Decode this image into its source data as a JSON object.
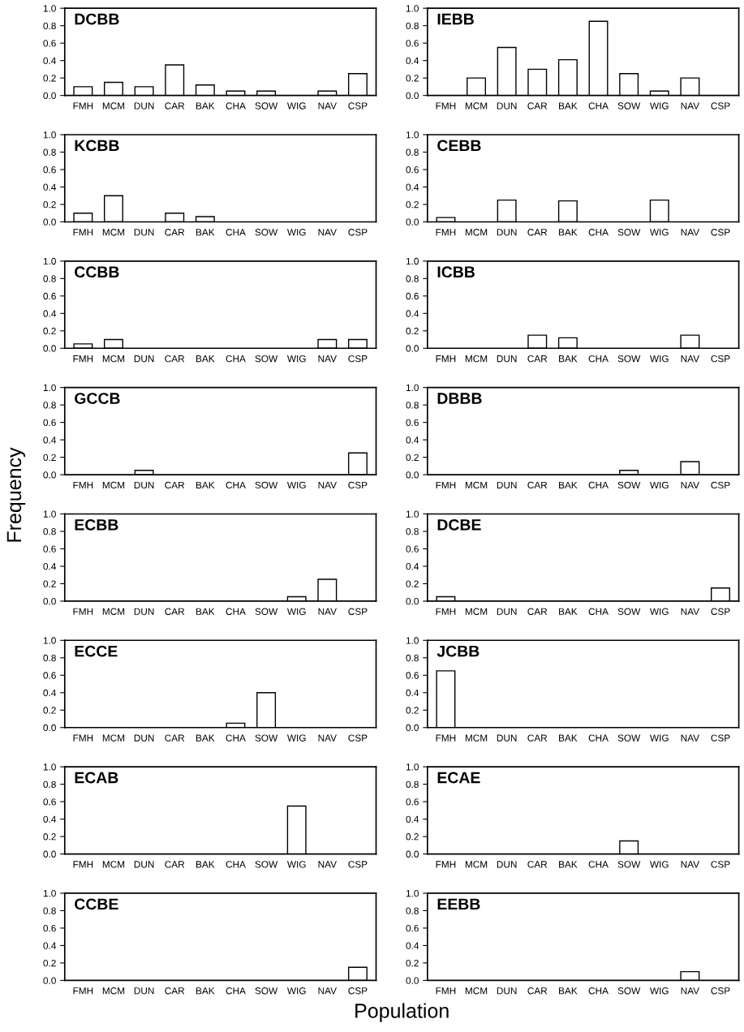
{
  "chart_data": [
    {
      "type": "bar",
      "title": "DCBB",
      "categories": [
        "FMH",
        "MCM",
        "DUN",
        "CAR",
        "BAK",
        "CHA",
        "SOW",
        "WIG",
        "NAV",
        "CSP"
      ],
      "values": [
        0.1,
        0.15,
        0.1,
        0.35,
        0.12,
        0.05,
        0.05,
        0,
        0.05,
        0.25
      ],
      "color": "#ffffff",
      "ylim": [
        0,
        1
      ],
      "yticks": [
        {
          "value": 0,
          "label": "0.0"
        },
        {
          "value": 0.2,
          "label": "0.2"
        },
        {
          "value": 0.4,
          "label": "0.4"
        },
        {
          "value": 0.6,
          "label": "0.6"
        },
        {
          "value": 0.8,
          "label": "0.8"
        },
        {
          "value": 1,
          "label": "1.0"
        }
      ]
    },
    {
      "type": "bar",
      "title": "IEBB",
      "categories": [
        "FMH",
        "MCM",
        "DUN",
        "CAR",
        "BAK",
        "CHA",
        "SOW",
        "WIG",
        "NAV",
        "CSP"
      ],
      "values": [
        0,
        0.2,
        0.55,
        0.3,
        0.41,
        0.85,
        0.25,
        0.05,
        0.2,
        0
      ],
      "color": "#ffffff",
      "ylim": [
        0,
        1
      ],
      "yticks": [
        {
          "value": 0,
          "label": "0.0"
        },
        {
          "value": 0.2,
          "label": "0.2"
        },
        {
          "value": 0.4,
          "label": "0.4"
        },
        {
          "value": 0.6,
          "label": "0.6"
        },
        {
          "value": 0.8,
          "label": "0.8"
        },
        {
          "value": 1,
          "label": "1.0"
        }
      ]
    },
    {
      "type": "bar",
      "title": "KCBB",
      "categories": [
        "FMH",
        "MCM",
        "DUN",
        "CAR",
        "BAK",
        "CHA",
        "SOW",
        "WIG",
        "NAV",
        "CSP"
      ],
      "values": [
        0.1,
        0.3,
        0,
        0.1,
        0.06,
        0,
        0,
        0,
        0,
        0
      ],
      "color": "#ffffff",
      "ylim": [
        0,
        1
      ],
      "yticks": [
        {
          "value": 0,
          "label": "0.0"
        },
        {
          "value": 0.2,
          "label": "0.2"
        },
        {
          "value": 0.4,
          "label": "0.4"
        },
        {
          "value": 0.6,
          "label": "0.6"
        },
        {
          "value": 0.8,
          "label": "0.8"
        },
        {
          "value": 1,
          "label": "1.0"
        }
      ]
    },
    {
      "type": "bar",
      "title": "CEBB",
      "categories": [
        "FMH",
        "MCM",
        "DUN",
        "CAR",
        "BAK",
        "CHA",
        "SOW",
        "WIG",
        "NAV",
        "CSP"
      ],
      "values": [
        0.05,
        0,
        0.25,
        0,
        0.24,
        0,
        0,
        0.25,
        0,
        0
      ],
      "color": "#ffffff",
      "ylim": [
        0,
        1
      ],
      "yticks": [
        {
          "value": 0,
          "label": "0.0"
        },
        {
          "value": 0.2,
          "label": "0.2"
        },
        {
          "value": 0.4,
          "label": "0.4"
        },
        {
          "value": 0.6,
          "label": "0.6"
        },
        {
          "value": 0.8,
          "label": "0.8"
        },
        {
          "value": 1,
          "label": "1.0"
        }
      ]
    },
    {
      "type": "bar",
      "title": "CCBB",
      "categories": [
        "FMH",
        "MCM",
        "DUN",
        "CAR",
        "BAK",
        "CHA",
        "SOW",
        "WIG",
        "NAV",
        "CSP"
      ],
      "values": [
        0.05,
        0.1,
        0,
        0,
        0,
        0,
        0,
        0,
        0.1,
        0.1
      ],
      "color": "#ffffff",
      "ylim": [
        0,
        1
      ],
      "yticks": [
        {
          "value": 0,
          "label": "0.0"
        },
        {
          "value": 0.2,
          "label": "0.2"
        },
        {
          "value": 0.4,
          "label": "0.4"
        },
        {
          "value": 0.6,
          "label": "0.6"
        },
        {
          "value": 0.8,
          "label": "0.8"
        },
        {
          "value": 1,
          "label": "1.0"
        }
      ]
    },
    {
      "type": "bar",
      "title": "ICBB",
      "categories": [
        "FMH",
        "MCM",
        "DUN",
        "CAR",
        "BAK",
        "CHA",
        "SOW",
        "WIG",
        "NAV",
        "CSP"
      ],
      "values": [
        0,
        0,
        0,
        0.15,
        0.12,
        0,
        0,
        0,
        0.15,
        0
      ],
      "color": "#ffffff",
      "ylim": [
        0,
        1
      ],
      "yticks": [
        {
          "value": 0,
          "label": "0.0"
        },
        {
          "value": 0.2,
          "label": "0.2"
        },
        {
          "value": 0.4,
          "label": "0.4"
        },
        {
          "value": 0.6,
          "label": "0.6"
        },
        {
          "value": 0.8,
          "label": "0.8"
        },
        {
          "value": 1,
          "label": "1.0"
        }
      ]
    },
    {
      "type": "bar",
      "title": "GCCB",
      "ylabel": "Frequency",
      "categories": [
        "FMH",
        "MCM",
        "DUN",
        "CAR",
        "BAK",
        "CHA",
        "SOW",
        "WIG",
        "NAV",
        "CSP"
      ],
      "values": [
        0,
        0,
        0.05,
        0,
        0,
        0,
        0,
        0,
        0,
        0.25
      ],
      "color": "#ffffff",
      "ylim": [
        0,
        1
      ],
      "yticks": [
        {
          "value": 0,
          "label": "0.0"
        },
        {
          "value": 0.2,
          "label": "0.2"
        },
        {
          "value": 0.4,
          "label": "0.4"
        },
        {
          "value": 0.6,
          "label": "0.6"
        },
        {
          "value": 0.8,
          "label": "0.8"
        },
        {
          "value": 1,
          "label": "1.0"
        }
      ]
    },
    {
      "type": "bar",
      "title": "DBBB",
      "categories": [
        "FMH",
        "MCM",
        "DUN",
        "CAR",
        "BAK",
        "CHA",
        "SOW",
        "WIG",
        "NAV",
        "CSP"
      ],
      "values": [
        0,
        0,
        0,
        0,
        0,
        0,
        0.05,
        0,
        0.15,
        0
      ],
      "color": "#ffffff",
      "ylim": [
        0,
        1
      ],
      "yticks": [
        {
          "value": 0,
          "label": "0.0"
        },
        {
          "value": 0.2,
          "label": "0.2"
        },
        {
          "value": 0.4,
          "label": "0.4"
        },
        {
          "value": 0.6,
          "label": "0.6"
        },
        {
          "value": 0.8,
          "label": "0.8"
        },
        {
          "value": 1,
          "label": "1.0"
        }
      ]
    },
    {
      "type": "bar",
      "title": "ECBB",
      "categories": [
        "FMH",
        "MCM",
        "DUN",
        "CAR",
        "BAK",
        "CHA",
        "SOW",
        "WIG",
        "NAV",
        "CSP"
      ],
      "values": [
        0,
        0,
        0,
        0,
        0,
        0,
        0,
        0.05,
        0.25,
        0
      ],
      "color": "#ffffff",
      "ylim": [
        0,
        1
      ],
      "yticks": [
        {
          "value": 0,
          "label": "0.0"
        },
        {
          "value": 0.2,
          "label": "0.2"
        },
        {
          "value": 0.4,
          "label": "0.4"
        },
        {
          "value": 0.6,
          "label": "0.6"
        },
        {
          "value": 0.8,
          "label": "0.8"
        },
        {
          "value": 1,
          "label": "1.0"
        }
      ]
    },
    {
      "type": "bar",
      "title": "DCBE",
      "categories": [
        "FMH",
        "MCM",
        "DUN",
        "CAR",
        "BAK",
        "CHA",
        "SOW",
        "WIG",
        "NAV",
        "CSP"
      ],
      "values": [
        0.05,
        0,
        0,
        0,
        0,
        0,
        0,
        0,
        0,
        0.15
      ],
      "color": "#ffffff",
      "ylim": [
        0,
        1
      ],
      "yticks": [
        {
          "value": 0,
          "label": "0.0"
        },
        {
          "value": 0.2,
          "label": "0.2"
        },
        {
          "value": 0.4,
          "label": "0.4"
        },
        {
          "value": 0.6,
          "label": "0.6"
        },
        {
          "value": 0.8,
          "label": "0.8"
        },
        {
          "value": 1,
          "label": "1.0"
        }
      ]
    },
    {
      "type": "bar",
      "title": "ECCE",
      "categories": [
        "FMH",
        "MCM",
        "DUN",
        "CAR",
        "BAK",
        "CHA",
        "SOW",
        "WIG",
        "NAV",
        "CSP"
      ],
      "values": [
        0,
        0,
        0,
        0,
        0,
        0.05,
        0.4,
        0,
        0,
        0
      ],
      "color": "#ffffff",
      "ylim": [
        0,
        1
      ],
      "yticks": [
        {
          "value": 0,
          "label": "0.0"
        },
        {
          "value": 0.2,
          "label": "0.2"
        },
        {
          "value": 0.4,
          "label": "0.4"
        },
        {
          "value": 0.6,
          "label": "0.6"
        },
        {
          "value": 0.8,
          "label": "0.8"
        },
        {
          "value": 1,
          "label": "1.0"
        }
      ]
    },
    {
      "type": "bar",
      "title": "JCBB",
      "categories": [
        "FMH",
        "MCM",
        "DUN",
        "CAR",
        "BAK",
        "CHA",
        "SOW",
        "WIG",
        "NAV",
        "CSP"
      ],
      "values": [
        0.65,
        0,
        0,
        0,
        0,
        0,
        0,
        0,
        0,
        0
      ],
      "color": "#ffffff",
      "ylim": [
        0,
        1
      ],
      "yticks": [
        {
          "value": 0,
          "label": "0.0"
        },
        {
          "value": 0.2,
          "label": "0.2"
        },
        {
          "value": 0.4,
          "label": "0.4"
        },
        {
          "value": 0.6,
          "label": "0.6"
        },
        {
          "value": 0.8,
          "label": "0.8"
        },
        {
          "value": 1,
          "label": "1.0"
        }
      ]
    },
    {
      "type": "bar",
      "title": "ECAB",
      "categories": [
        "FMH",
        "MCM",
        "DUN",
        "CAR",
        "BAK",
        "CHA",
        "SOW",
        "WIG",
        "NAV",
        "CSP"
      ],
      "values": [
        0,
        0,
        0,
        0,
        0,
        0,
        0,
        0.55,
        0,
        0
      ],
      "color": "#ffffff",
      "ylim": [
        0,
        1
      ],
      "yticks": [
        {
          "value": 0,
          "label": "0.0"
        },
        {
          "value": 0.2,
          "label": "0.2"
        },
        {
          "value": 0.4,
          "label": "0.4"
        },
        {
          "value": 0.6,
          "label": "0.6"
        },
        {
          "value": 0.8,
          "label": "0.8"
        },
        {
          "value": 1,
          "label": "1.0"
        }
      ]
    },
    {
      "type": "bar",
      "title": "ECAE",
      "categories": [
        "FMH",
        "MCM",
        "DUN",
        "CAR",
        "BAK",
        "CHA",
        "SOW",
        "WIG",
        "NAV",
        "CSP"
      ],
      "values": [
        0,
        0,
        0,
        0,
        0,
        0,
        0.15,
        0,
        0,
        0
      ],
      "color": "#ffffff",
      "ylim": [
        0,
        1
      ],
      "yticks": [
        {
          "value": 0,
          "label": "0.0"
        },
        {
          "value": 0.2,
          "label": "0.2"
        },
        {
          "value": 0.4,
          "label": "0.4"
        },
        {
          "value": 0.6,
          "label": "0.6"
        },
        {
          "value": 0.8,
          "label": "0.8"
        },
        {
          "value": 1,
          "label": "1.0"
        }
      ]
    },
    {
      "type": "bar",
      "title": "CCBE",
      "xlabel": "Population",
      "categories": [
        "FMH",
        "MCM",
        "DUN",
        "CAR",
        "BAK",
        "CHA",
        "SOW",
        "WIG",
        "NAV",
        "CSP"
      ],
      "values": [
        0,
        0,
        0,
        0,
        0,
        0,
        0,
        0,
        0,
        0.15
      ],
      "color": "#ffffff",
      "ylim": [
        0,
        1
      ],
      "yticks": [
        {
          "value": 0,
          "label": "0.0"
        },
        {
          "value": 0.2,
          "label": "0.2"
        },
        {
          "value": 0.4,
          "label": "0.4"
        },
        {
          "value": 0.6,
          "label": "0.6"
        },
        {
          "value": 0.8,
          "label": "0.8"
        },
        {
          "value": 1,
          "label": "1.0"
        }
      ]
    },
    {
      "type": "bar",
      "title": "EEBB",
      "categories": [
        "FMH",
        "MCM",
        "DUN",
        "CAR",
        "BAK",
        "CHA",
        "SOW",
        "WIG",
        "NAV",
        "CSP"
      ],
      "values": [
        0,
        0,
        0,
        0,
        0,
        0,
        0,
        0,
        0.1,
        0
      ],
      "color": "#ffffff",
      "ylim": [
        0,
        1
      ],
      "yticks": [
        {
          "value": 0,
          "label": "0.0"
        },
        {
          "value": 0.2,
          "label": "0.2"
        },
        {
          "value": 0.4,
          "label": "0.4"
        },
        {
          "value": 0.6,
          "label": "0.6"
        },
        {
          "value": 0.8,
          "label": "0.8"
        },
        {
          "value": 1,
          "label": "1.0"
        }
      ]
    }
  ]
}
